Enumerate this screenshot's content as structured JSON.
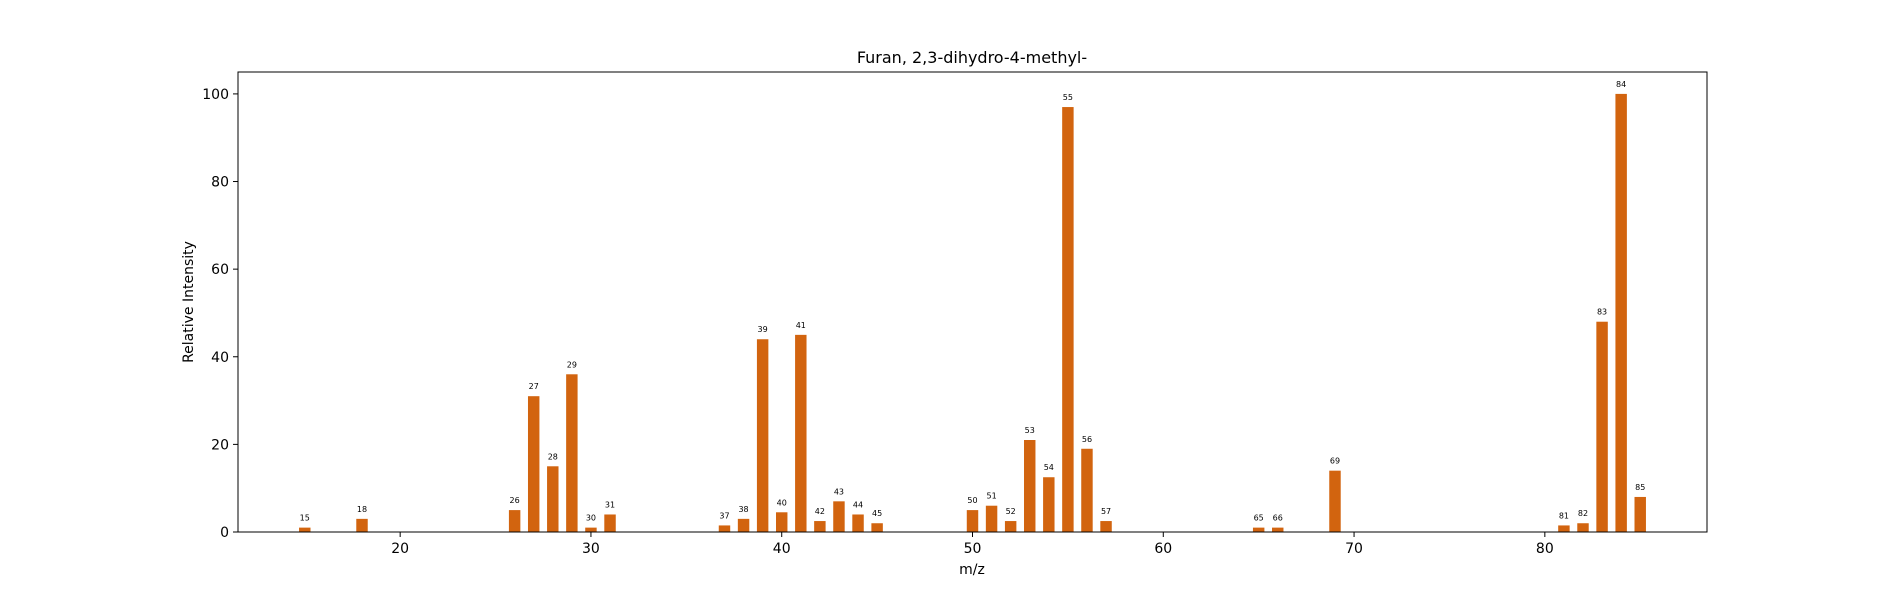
{
  "chart_data": {
    "type": "bar",
    "title": "Furan, 2,3-dihydro-4-methyl-",
    "xlabel": "m/z",
    "ylabel": "Relative Intensity",
    "xlim": [
      11.5,
      88.5
    ],
    "ylim": [
      0,
      105
    ],
    "xticks": [
      20,
      30,
      40,
      50,
      60,
      70,
      80
    ],
    "yticks": [
      0,
      20,
      40,
      60,
      80,
      100
    ],
    "grid": false,
    "bar_color": "#d2640f",
    "x": [
      15,
      18,
      26,
      27,
      28,
      29,
      30,
      31,
      37,
      38,
      39,
      40,
      41,
      42,
      43,
      44,
      45,
      50,
      51,
      52,
      53,
      54,
      55,
      56,
      57,
      65,
      66,
      69,
      81,
      82,
      83,
      84,
      85
    ],
    "values": [
      1.0,
      3.0,
      5.0,
      31.0,
      15.0,
      36.0,
      1.0,
      4.0,
      1.5,
      3.0,
      44.0,
      4.5,
      45.0,
      2.5,
      7.0,
      4.0,
      2.0,
      5.0,
      6.0,
      2.5,
      21.0,
      12.5,
      97.0,
      19.0,
      2.5,
      1.0,
      1.0,
      14.0,
      1.5,
      2.0,
      48.0,
      100.0,
      8.0
    ],
    "bar_labels": [
      "15",
      "18",
      "26",
      "27",
      "28",
      "29",
      "30",
      "31",
      "37",
      "38",
      "39",
      "40",
      "41",
      "42",
      "43",
      "44",
      "45",
      "50",
      "51",
      "52",
      "53",
      "54",
      "55",
      "56",
      "57",
      "65",
      "66",
      "69",
      "81",
      "82",
      "83",
      "84",
      "85"
    ]
  }
}
